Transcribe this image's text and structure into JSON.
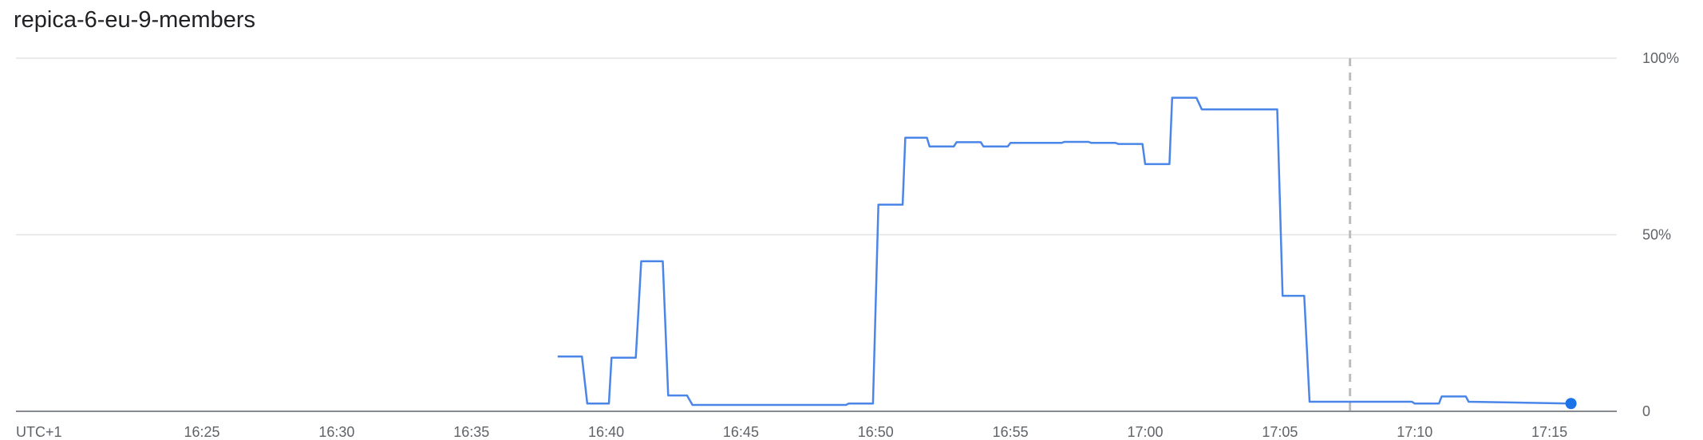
{
  "chart_data": {
    "type": "line",
    "title": "repica-6-eu-9-members",
    "timezone_label": "UTC+1",
    "x_tick_labels": [
      "16:25",
      "16:30",
      "16:35",
      "16:40",
      "16:45",
      "16:50",
      "16:55",
      "17:00",
      "17:05",
      "17:10",
      "17:15"
    ],
    "x_tick_minutes": [
      25,
      30,
      35,
      40,
      45,
      50,
      55,
      60,
      65,
      70,
      75
    ],
    "xlim_minutes": [
      18.1,
      77.5
    ],
    "y_tick_labels": [
      "0",
      "50%",
      "100%"
    ],
    "y_tick_values": [
      0,
      50,
      100
    ],
    "ylim": [
      0,
      100
    ],
    "grid": true,
    "vertical_marker_minute": 67.6,
    "line_color": "#4a86e8",
    "marker_color": "#1a73e8",
    "series": [
      {
        "x": [
          38.2,
          39.1,
          39.3,
          40.1,
          40.2,
          41.1,
          41.3,
          42.1,
          42.3,
          43.0,
          43.2,
          48.9,
          49.0,
          49.9,
          50.1,
          51.0,
          51.1,
          51.9,
          52.0,
          52.9,
          53.0,
          53.9,
          54.0,
          54.9,
          55.0,
          56.9,
          57.0,
          57.9,
          58.0,
          58.9,
          59.0,
          59.9,
          60.0,
          60.9,
          61.0,
          61.9,
          62.1,
          64.9,
          65.1,
          65.9,
          66.1,
          69.9,
          70.0,
          70.9,
          71.0,
          71.9,
          72.0,
          75.8
        ],
        "y": [
          15.5,
          15.5,
          2.2,
          2.2,
          15.2,
          15.2,
          42.5,
          42.5,
          4.5,
          4.5,
          1.8,
          1.8,
          2.2,
          2.2,
          58.5,
          58.5,
          77.5,
          77.5,
          75.0,
          75.0,
          76.2,
          76.2,
          75.0,
          75.0,
          76.0,
          76.0,
          76.3,
          76.3,
          76.0,
          76.0,
          75.7,
          75.7,
          70.0,
          70.0,
          88.8,
          88.8,
          85.5,
          85.5,
          32.7,
          32.7,
          2.7,
          2.7,
          2.2,
          2.2,
          4.2,
          4.2,
          2.7,
          2.2
        ]
      }
    ]
  }
}
